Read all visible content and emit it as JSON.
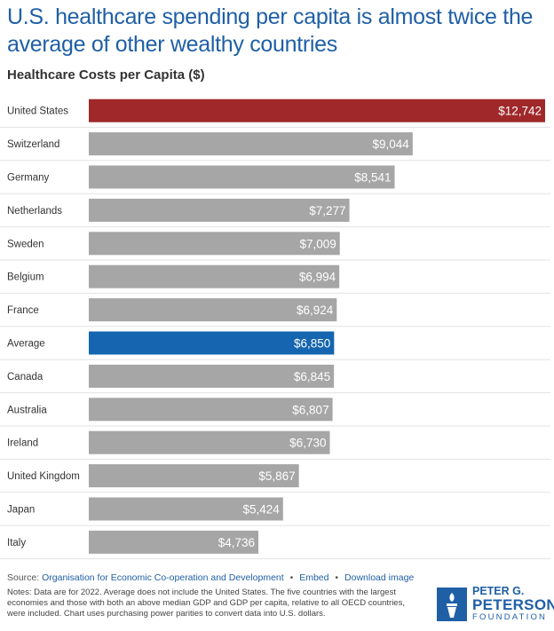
{
  "header": {
    "title": "U.S. healthcare spending per capita is almost twice the average of other wealthy countries",
    "subtitle": "Healthcare Costs per Capita ($)"
  },
  "colors": {
    "us": "#a0282a",
    "average": "#1565b0",
    "other": "#a6a6a6",
    "title": "#1f5fa6"
  },
  "chart_data": {
    "type": "bar",
    "orientation": "horizontal",
    "title": "Healthcare Costs per Capita ($)",
    "categories": [
      "United States",
      "Switzerland",
      "Germany",
      "Netherlands",
      "Sweden",
      "Belgium",
      "France",
      "Average",
      "Canada",
      "Australia",
      "Ireland",
      "United Kingdom",
      "Japan",
      "Italy"
    ],
    "values": [
      12742,
      9044,
      8541,
      7277,
      7009,
      6994,
      6924,
      6850,
      6845,
      6807,
      6730,
      5867,
      5424,
      4736
    ],
    "labels": [
      "$12,742",
      "$9,044",
      "$8,541",
      "$7,277",
      "$7,009",
      "$6,994",
      "$6,924",
      "$6,850",
      "$6,845",
      "$6,807",
      "$6,730",
      "$5,867",
      "$5,424",
      "$4,736"
    ],
    "highlight": {
      "United States": "us",
      "Average": "average"
    },
    "xlim": [
      0,
      12742
    ],
    "grid": false,
    "legend": "none"
  },
  "footer": {
    "source_prefix": "Source:",
    "source_link": "Organisation for Economic Co-operation and Development",
    "embed": "Embed",
    "download": "Download image",
    "notes": "Notes: Data are for 2022. Average does not include the United States. The five countries with the largest economies and those with both an above median GDP and GDP per capita, relative to all OECD countries, were included. Chart uses purchasing power parities to convert data into U.S. dollars."
  },
  "logo": {
    "line1": "PETER G.",
    "line2": "PETERSON",
    "line3": "FOUNDATION"
  }
}
